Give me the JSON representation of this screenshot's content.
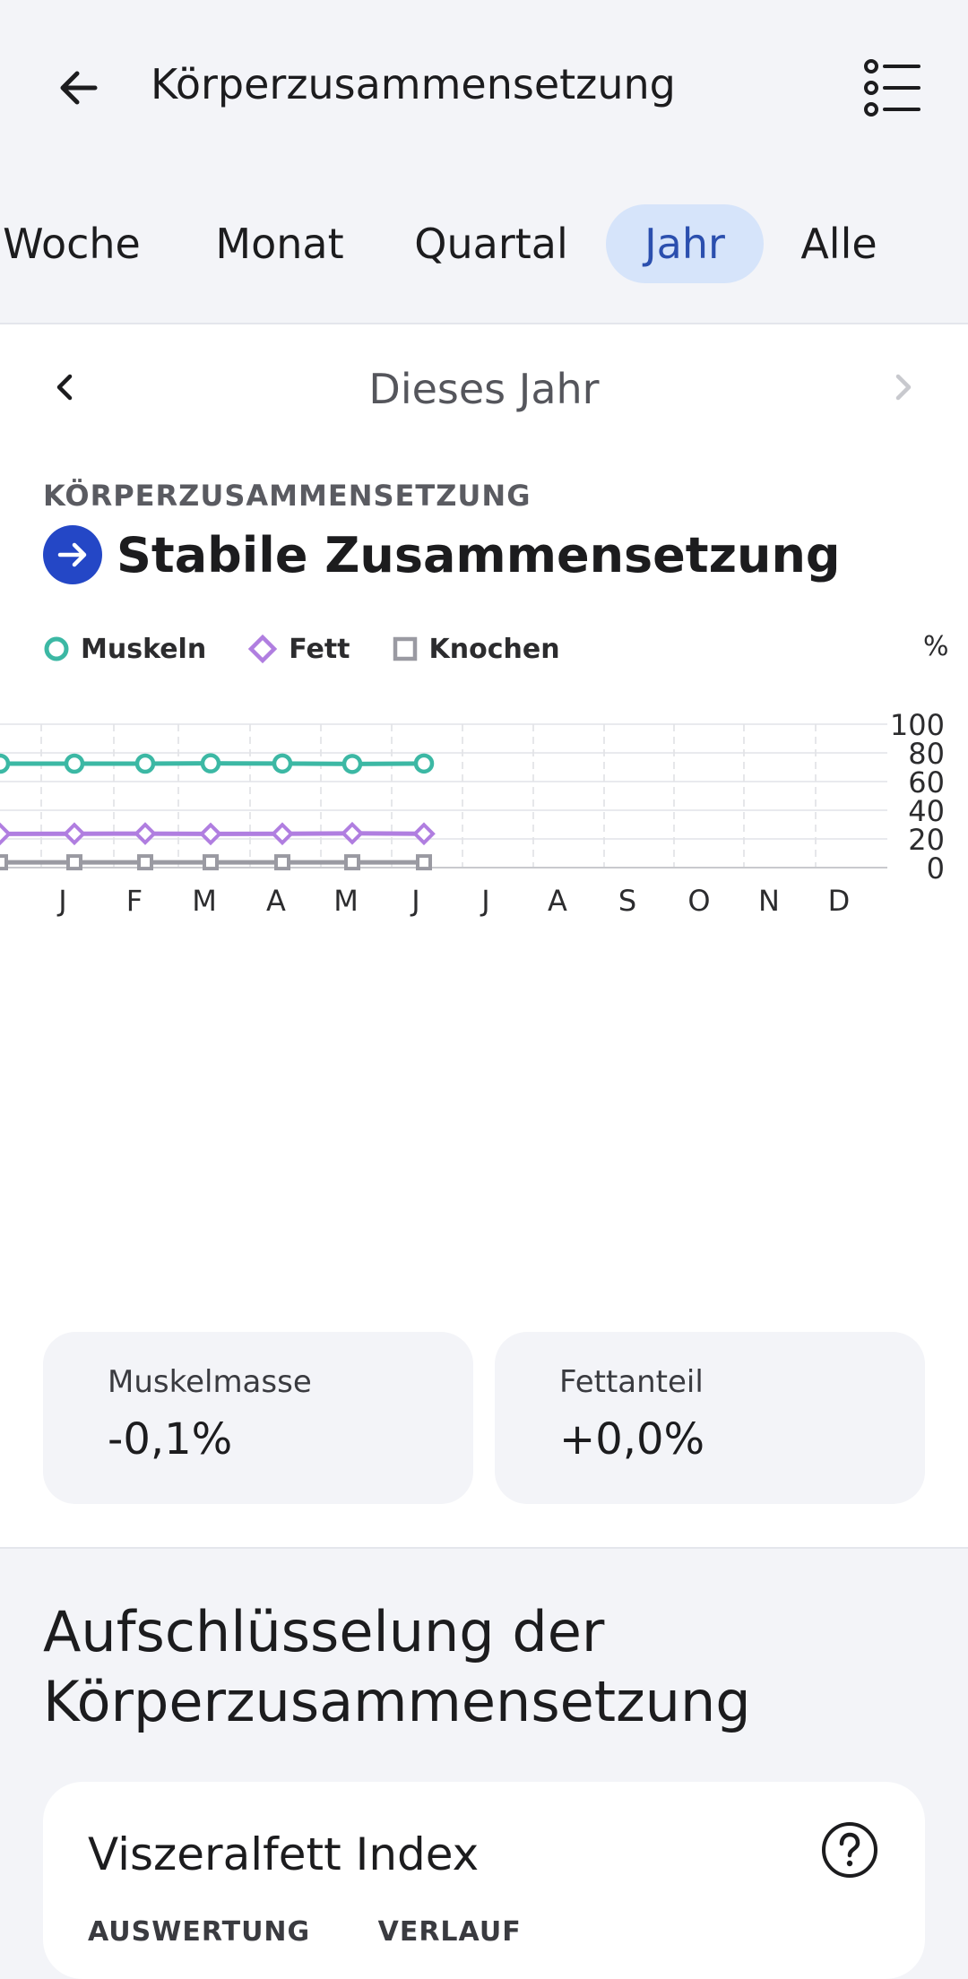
{
  "header": {
    "title": "Körperzusammensetzung"
  },
  "tabs": [
    {
      "label": "Woche",
      "active": false
    },
    {
      "label": "Monat",
      "active": false
    },
    {
      "label": "Quartal",
      "active": false
    },
    {
      "label": "Jahr",
      "active": true
    },
    {
      "label": "Alle",
      "active": false
    }
  ],
  "period": {
    "label": "Dieses Jahr"
  },
  "section": {
    "label": "KÖRPERZUSAMMENSETZUNG",
    "trend": "Stabile Zusammensetzung"
  },
  "legend": {
    "muscle": "Muskeln",
    "fat": "Fett",
    "bone": "Knochen",
    "unit": "%"
  },
  "chart_data": {
    "type": "line",
    "x": [
      "J",
      "F",
      "M",
      "A",
      "M",
      "J",
      "J",
      "A",
      "S",
      "O",
      "N",
      "D"
    ],
    "ylim": [
      0,
      100
    ],
    "y_ticks": [
      0,
      20,
      40,
      60,
      80,
      100
    ],
    "y_unit": "%",
    "grid": true,
    "legend": "top-left",
    "series": [
      {
        "name": "Muskeln",
        "color": "#3cb8a4",
        "marker": "circle",
        "leading": 72.5,
        "values": [
          72.5,
          72.5,
          72.7,
          72.6,
          72.3,
          72.6,
          null,
          null,
          null,
          null,
          null,
          null
        ]
      },
      {
        "name": "Fett",
        "color": "#b07ee0",
        "marker": "diamond",
        "leading": 23.5,
        "values": [
          23.6,
          23.7,
          23.5,
          23.6,
          23.9,
          23.6,
          null,
          null,
          null,
          null,
          null,
          null
        ]
      },
      {
        "name": "Knochen",
        "color": "#9a9aa2",
        "marker": "square",
        "leading": 3.7,
        "values": [
          3.7,
          3.7,
          3.7,
          3.7,
          3.7,
          3.7,
          null,
          null,
          null,
          null,
          null,
          null
        ]
      }
    ]
  },
  "stats": [
    {
      "label": "Muskelmasse",
      "value": "-0,1%"
    },
    {
      "label": "Fettanteil",
      "value": "+0,0%"
    }
  ],
  "breakdown": {
    "title": "Aufschlüsselung der Körperzusammensetzung",
    "card_title": "Viszeralfett Index",
    "sub_tabs": [
      "AUSWERTUNG",
      "VERLAUF"
    ]
  }
}
